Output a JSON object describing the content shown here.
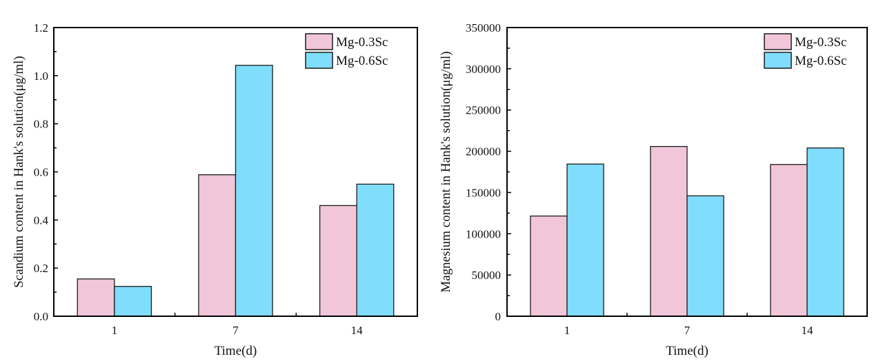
{
  "colors": {
    "series_a": "#f1c6d9",
    "series_b": "#80ddfc",
    "stroke": "#1a1a1a"
  },
  "chart_data": [
    {
      "type": "bar",
      "title": "",
      "xlabel": "Time(d)",
      "ylabel": "Scandium content in Hank's solution(μg/ml)",
      "categories": [
        "1",
        "7",
        "14"
      ],
      "ylim": [
        0,
        1.2
      ],
      "yticks": [
        0.0,
        0.2,
        0.4,
        0.6,
        0.8,
        1.0,
        1.2
      ],
      "ytick_labels": [
        "0.0",
        "0.2",
        "0.4",
        "0.6",
        "0.8",
        "1.0",
        "1.2"
      ],
      "legend_position": "top-right",
      "grid": false,
      "series": [
        {
          "name": "Mg-0.3Sc",
          "values": [
            0.155,
            0.588,
            0.46
          ]
        },
        {
          "name": "Mg-0.6Sc",
          "values": [
            0.124,
            1.043,
            0.549
          ]
        }
      ]
    },
    {
      "type": "bar",
      "title": "",
      "xlabel": "Time(d)",
      "ylabel": "Magnesium content in Hank's solution(μg/ml)",
      "categories": [
        "1",
        "7",
        "14"
      ],
      "ylim": [
        0,
        350000
      ],
      "yticks": [
        0,
        50000,
        100000,
        150000,
        200000,
        250000,
        300000,
        350000
      ],
      "ytick_labels": [
        "0",
        "50000",
        "100000",
        "150000",
        "200000",
        "250000",
        "300000",
        "350000"
      ],
      "legend_position": "top-right",
      "grid": false,
      "series": [
        {
          "name": "Mg-0.3Sc",
          "values": [
            121500,
            205800,
            184000
          ]
        },
        {
          "name": "Mg-0.6Sc",
          "values": [
            184500,
            146000,
            204000
          ]
        }
      ]
    }
  ]
}
